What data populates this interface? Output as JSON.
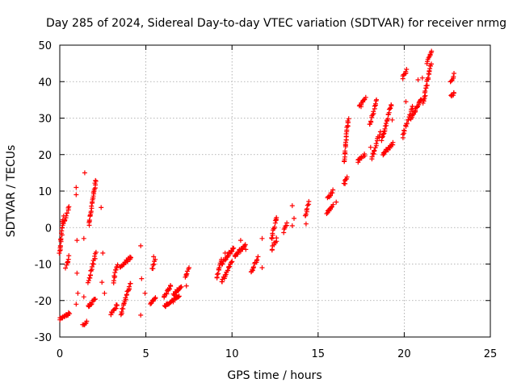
{
  "chart_data": {
    "type": "scatter",
    "title": "Day 285 of 2024, Sidereal Day-to-day VTEC variation (SDTVAR) for receiver nrmg",
    "xlabel": "GPS time / hours",
    "ylabel": "SDTVAR / TECUs",
    "xlim": [
      0,
      25
    ],
    "ylim": [
      -30,
      50
    ],
    "x_ticks": [
      0,
      5,
      10,
      15,
      20,
      25
    ],
    "y_ticks": [
      -30,
      -20,
      -10,
      0,
      10,
      20,
      30,
      40,
      50
    ],
    "grid": true,
    "marker": "plus",
    "color": "#ff0000",
    "clusters": [
      {
        "x": [
          0.0,
          0.2
        ],
        "y": [
          -7,
          3
        ]
      },
      {
        "x": [
          0.2,
          0.55
        ],
        "y": [
          1,
          5.5
        ]
      },
      {
        "x": [
          0.0,
          0.55
        ],
        "y": [
          -25,
          -23.5
        ]
      },
      {
        "x": [
          0.35,
          0.55
        ],
        "y": [
          -11,
          -8
        ]
      },
      {
        "x": [
          1.35,
          1.55
        ],
        "y": [
          -27,
          -25.5
        ]
      },
      {
        "x": [
          1.65,
          2.1
        ],
        "y": [
          -15,
          -7
        ]
      },
      {
        "x": [
          1.65,
          2.05
        ],
        "y": [
          -22,
          -19.5
        ]
      },
      {
        "x": [
          1.7,
          2.1
        ],
        "y": [
          1,
          13
        ]
      },
      {
        "x": [
          2.95,
          3.35
        ],
        "y": [
          -24,
          -21
        ]
      },
      {
        "x": [
          3.1,
          3.35
        ],
        "y": [
          -15,
          -10
        ]
      },
      {
        "x": [
          3.55,
          4.1
        ],
        "y": [
          -24,
          -15
        ]
      },
      {
        "x": [
          3.5,
          4.15
        ],
        "y": [
          -11,
          -8
        ]
      },
      {
        "x": [
          5.25,
          5.55
        ],
        "y": [
          -21,
          -19
        ]
      },
      {
        "x": [
          5.35,
          5.55
        ],
        "y": [
          -11.5,
          -9
        ]
      },
      {
        "x": [
          6.05,
          6.45
        ],
        "y": [
          -19,
          -16
        ]
      },
      {
        "x": [
          6.1,
          6.95
        ],
        "y": [
          -21.5,
          -19
        ]
      },
      {
        "x": [
          6.6,
          7.05
        ],
        "y": [
          -18.5,
          -16
        ]
      },
      {
        "x": [
          7.3,
          7.5
        ],
        "y": [
          -14,
          -11
        ]
      },
      {
        "x": [
          9.1,
          9.4
        ],
        "y": [
          -14,
          -9
        ]
      },
      {
        "x": [
          9.4,
          10.0
        ],
        "y": [
          -15,
          -9
        ]
      },
      {
        "x": [
          9.4,
          10.1
        ],
        "y": [
          -10,
          -5.5
        ]
      },
      {
        "x": [
          10.15,
          10.8
        ],
        "y": [
          -8,
          -4.5
        ]
      },
      {
        "x": [
          11.1,
          11.5
        ],
        "y": [
          -12.5,
          -8
        ]
      },
      {
        "x": [
          12.3,
          12.6
        ],
        "y": [
          -6,
          -3
        ]
      },
      {
        "x": [
          12.3,
          12.6
        ],
        "y": [
          -3,
          3
        ]
      },
      {
        "x": [
          13.0,
          13.2
        ],
        "y": [
          -1,
          1
        ]
      },
      {
        "x": [
          14.25,
          14.45
        ],
        "y": [
          3,
          7
        ]
      },
      {
        "x": [
          15.55,
          15.85
        ],
        "y": [
          8,
          10
        ]
      },
      {
        "x": [
          15.5,
          15.85
        ],
        "y": [
          4,
          6
        ]
      },
      {
        "x": [
          16.5,
          16.7
        ],
        "y": [
          12,
          13.5
        ]
      },
      {
        "x": [
          16.5,
          16.75
        ],
        "y": [
          18,
          30
        ]
      },
      {
        "x": [
          17.3,
          17.7
        ],
        "y": [
          18,
          20
        ]
      },
      {
        "x": [
          17.4,
          17.75
        ],
        "y": [
          33,
          35.5
        ]
      },
      {
        "x": [
          18.0,
          18.4
        ],
        "y": [
          28,
          35
        ]
      },
      {
        "x": [
          18.1,
          18.6
        ],
        "y": [
          19,
          26
        ]
      },
      {
        "x": [
          18.7,
          19.25
        ],
        "y": [
          24,
          34
        ]
      },
      {
        "x": [
          18.75,
          19.35
        ],
        "y": [
          20,
          23
        ]
      },
      {
        "x": [
          19.9,
          20.15
        ],
        "y": [
          41,
          43
        ]
      },
      {
        "x": [
          19.9,
          20.5
        ],
        "y": [
          25,
          33
        ]
      },
      {
        "x": [
          20.4,
          21.0
        ],
        "y": [
          30,
          35
        ]
      },
      {
        "x": [
          21.1,
          21.55
        ],
        "y": [
          34,
          45
        ]
      },
      {
        "x": [
          21.3,
          21.6
        ],
        "y": [
          45,
          48
        ]
      },
      {
        "x": [
          22.7,
          22.9
        ],
        "y": [
          40,
          42
        ]
      },
      {
        "x": [
          22.7,
          22.9
        ],
        "y": [
          36,
          37
        ]
      }
    ],
    "scattered": [
      [
        0.95,
        11
      ],
      [
        0.95,
        9
      ],
      [
        1.0,
        -3.5
      ],
      [
        1.0,
        -12.5
      ],
      [
        1.05,
        -18
      ],
      [
        0.95,
        -21
      ],
      [
        1.4,
        -3
      ],
      [
        1.4,
        -19
      ],
      [
        1.45,
        15
      ],
      [
        2.4,
        5.5
      ],
      [
        2.5,
        -7
      ],
      [
        2.45,
        -15
      ],
      [
        2.6,
        -18
      ],
      [
        4.7,
        -5
      ],
      [
        4.75,
        -14
      ],
      [
        4.7,
        -24
      ],
      [
        4.95,
        -18
      ],
      [
        5.45,
        -8
      ],
      [
        7.35,
        -16
      ],
      [
        9.6,
        -7
      ],
      [
        10.5,
        -3.5
      ],
      [
        10.8,
        -6
      ],
      [
        11.75,
        -3
      ],
      [
        11.75,
        -11
      ],
      [
        13.5,
        0.5
      ],
      [
        13.6,
        2.5
      ],
      [
        13.5,
        6
      ],
      [
        14.3,
        1
      ],
      [
        16.05,
        7
      ],
      [
        18.05,
        22
      ],
      [
        19.3,
        29.5
      ],
      [
        20.1,
        34.5
      ],
      [
        20.8,
        40.5
      ],
      [
        21.05,
        41
      ]
    ]
  }
}
